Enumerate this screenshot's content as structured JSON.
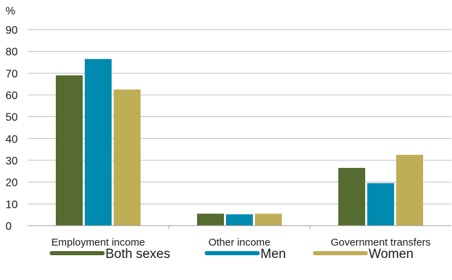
{
  "chart_data": {
    "type": "bar",
    "ylabel": "%",
    "ylim": [
      0,
      90
    ],
    "yticks": [
      0,
      10,
      20,
      30,
      40,
      50,
      60,
      70,
      80,
      90
    ],
    "categories": [
      "Employment income",
      "Other income",
      "Government transfers"
    ],
    "series": [
      {
        "name": "Both sexes",
        "color": "#556b2f",
        "values": [
          69,
          5.5,
          26.5
        ]
      },
      {
        "name": "Men",
        "color": "#008ab0",
        "values": [
          76.5,
          5.2,
          19.5
        ]
      },
      {
        "name": "Women",
        "color": "#bfae56",
        "values": [
          62.5,
          5.5,
          32.5
        ]
      }
    ],
    "grid": true,
    "legend_position": "bottom"
  }
}
